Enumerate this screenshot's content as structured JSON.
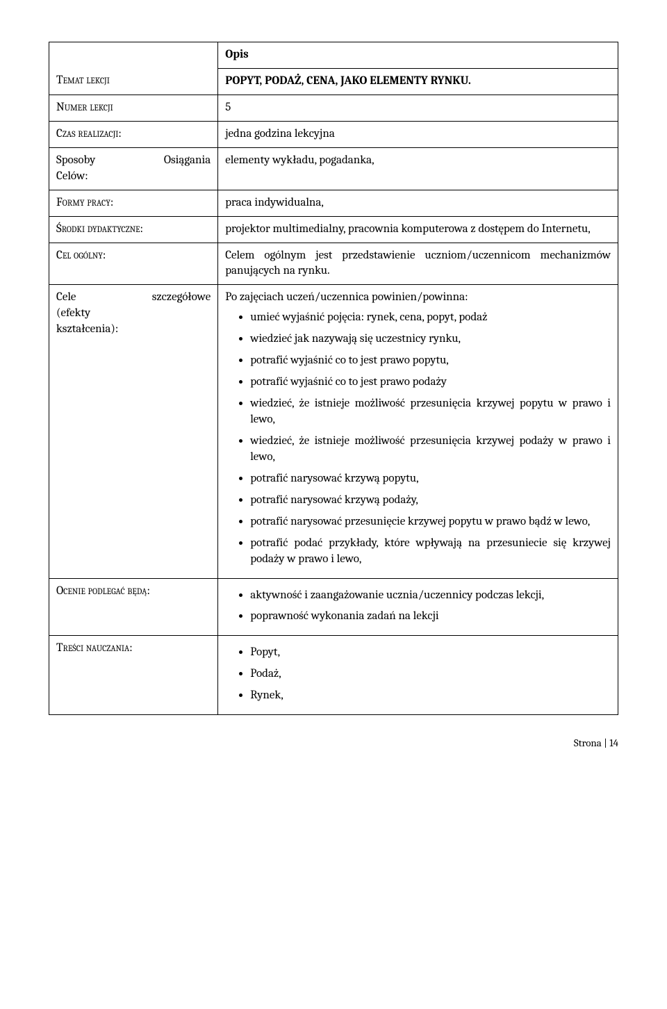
{
  "header_opis": "Opis",
  "labels": {
    "temat": "Temat lekcji",
    "numer": "Numer lekcji",
    "czas": "Czas realizacji:",
    "sposoby_l": "Sposoby",
    "sposoby_r": "Osiągania",
    "celow": "Celów:",
    "formy": "Formy pracy:",
    "srodki": "Środki dydaktyczne:",
    "cel_ogolny": "Cel ogólny:",
    "cele_l": "Cele",
    "cele_r": "szczegółowe",
    "efekty": "(efekty kształcenia):",
    "ocenie": "Ocenie podlegać będą:",
    "tresci": "Treści nauczania:"
  },
  "temat_val": "POPYT, PODAŻ, CENA, JAKO ELEMENTY RYNKU.",
  "numer_val": "5",
  "czas_val": "jedna godzina lekcyjna",
  "sposoby_val": "elementy wykładu, pogadanka,",
  "formy_val": "praca indywidualna,",
  "srodki_val": "projektor multimedialny, pracownia komputerowa z dostępem do Internetu,",
  "cel_ogolny_val": "Celem ogólnym jest przedstawienie uczniom/uczennicom mechanizmów panujących na rynku.",
  "cele_intro": "Po zajęciach uczeń/uczennica powinien/powinna:",
  "cele_items": [
    "umieć wyjaśnić pojęcia: rynek, cena, popyt, podaż",
    "wiedzieć jak nazywają się uczestnicy rynku,",
    "potrafić wyjaśnić co to jest prawo popytu,",
    "potrafić wyjaśnić co to jest prawo podaży",
    "wiedzieć, że istnieje możliwość przesunięcia krzywej popytu w prawo i lewo,",
    "wiedzieć, że istnieje możliwość przesunięcia krzywej podaży w prawo i lewo,",
    "potrafić narysować krzywą popytu,",
    "potrafić narysować krzywą podaży,",
    "potrafić narysować przesunięcie krzywej popytu w prawo bądź w lewo,",
    "potrafić podać przykłady, które wpływają na przesuniecie się krzywej podaży w prawo i lewo,"
  ],
  "ocenie_items": [
    "aktywność i zaangażowanie ucznia/uczennicy podczas lekcji,",
    "poprawność wykonania zadań na lekcji"
  ],
  "tresci_items": [
    "Popyt,",
    "Podaż,",
    "Rynek,"
  ],
  "footer": "Strona | 14"
}
